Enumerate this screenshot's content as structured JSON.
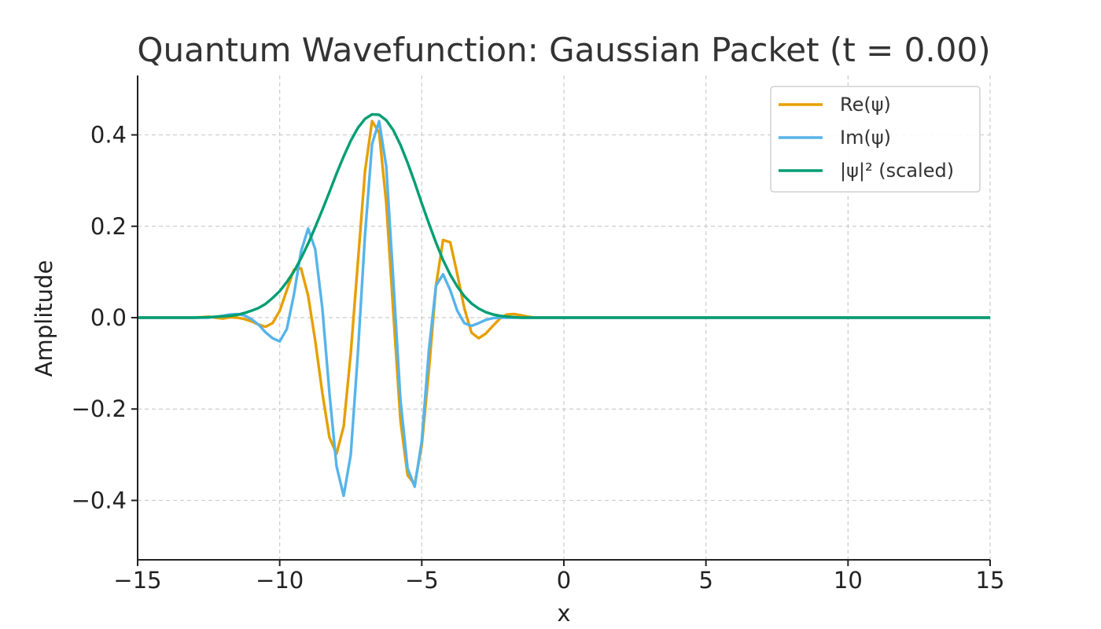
{
  "chart_data": {
    "type": "line",
    "title": "Quantum Wavefunction: Gaussian Packet (t = 0.00)",
    "xlabel": "x",
    "ylabel": "Amplitude",
    "xlim": [
      -15,
      15
    ],
    "ylim": [
      -0.53,
      0.53
    ],
    "xticks": [
      -15,
      -10,
      -5,
      0,
      5,
      10,
      15
    ],
    "xtick_labels": [
      "−15",
      "−10",
      "−5",
      "0",
      "5",
      "10",
      "15"
    ],
    "yticks": [
      -0.4,
      -0.2,
      0.0,
      0.2,
      0.4
    ],
    "ytick_labels": [
      "−0.4",
      "−0.2",
      "0.0",
      "0.2",
      "0.4"
    ],
    "grid": true,
    "legend_position": "top-right",
    "x": [
      -15,
      -14.5,
      -14,
      -13.5,
      -13,
      -12.5,
      -12,
      -11.75,
      -11.5,
      -11.25,
      -11,
      -10.75,
      -10.5,
      -10.25,
      -10,
      -9.75,
      -9.5,
      -9.25,
      -9,
      -8.75,
      -8.5,
      -8.25,
      -8,
      -7.75,
      -7.5,
      -7.25,
      -7,
      -6.75,
      -6.5,
      -6.25,
      -6,
      -5.75,
      -5.5,
      -5.25,
      -5,
      -4.75,
      -4.5,
      -4.25,
      -4,
      -3.75,
      -3.5,
      -3.25,
      -3,
      -2.75,
      -2.5,
      -2.25,
      -2,
      -1.75,
      -1.5,
      -1.25,
      -1,
      -0.75,
      -0.5,
      -0.25,
      0,
      0.5,
      1,
      1.5,
      2,
      3,
      4,
      5,
      6,
      7,
      8,
      9,
      10,
      11,
      12,
      13,
      14,
      15
    ],
    "series": [
      {
        "name": "Re(ψ)",
        "color": "#E69F00",
        "values": [
          0,
          0,
          0,
          0,
          0,
          0.002,
          -0.002,
          0.001,
          0,
          -0.003,
          -0.008,
          -0.015,
          -0.02,
          -0.012,
          0.015,
          0.06,
          0.105,
          0.108,
          0.048,
          -0.05,
          -0.165,
          -0.262,
          -0.298,
          -0.238,
          -0.078,
          0.12,
          0.32,
          0.43,
          0.405,
          0.25,
          0.01,
          -0.225,
          -0.345,
          -0.365,
          -0.28,
          -0.115,
          0.07,
          0.17,
          0.165,
          0.095,
          0.02,
          -0.033,
          -0.045,
          -0.035,
          -0.018,
          -0.002,
          0.007,
          0.008,
          0.005,
          0.002,
          0,
          0,
          0,
          0,
          0,
          0,
          0,
          0,
          0,
          0,
          0,
          0,
          0,
          0,
          0,
          0,
          0,
          0,
          0,
          0,
          0,
          0
        ]
      },
      {
        "name": "Im(ψ)",
        "color": "#56B4E9",
        "values": [
          0,
          0,
          0,
          0,
          0,
          0,
          0.004,
          0.007,
          0.008,
          0.005,
          -0.003,
          -0.015,
          -0.032,
          -0.045,
          -0.052,
          -0.025,
          0.05,
          0.145,
          0.195,
          0.15,
          0.02,
          -0.165,
          -0.325,
          -0.39,
          -0.3,
          -0.08,
          0.18,
          0.38,
          0.43,
          0.33,
          0.08,
          -0.18,
          -0.33,
          -0.37,
          -0.27,
          -0.07,
          0.07,
          0.095,
          0.06,
          0.015,
          -0.012,
          -0.018,
          -0.012,
          -0.005,
          -0.001,
          0,
          0,
          0,
          0,
          0,
          0,
          0,
          0,
          0,
          0,
          0,
          0,
          0,
          0,
          0,
          0,
          0,
          0,
          0,
          0,
          0,
          0,
          0,
          0,
          0,
          0,
          0
        ]
      },
      {
        "name": "|ψ|² (scaled)",
        "color": "#009E73",
        "values": [
          0,
          0,
          0,
          0,
          0,
          0.001,
          0.003,
          0.004,
          0.006,
          0.01,
          0.015,
          0.021,
          0.03,
          0.043,
          0.058,
          0.078,
          0.101,
          0.13,
          0.162,
          0.198,
          0.236,
          0.275,
          0.315,
          0.353,
          0.387,
          0.415,
          0.435,
          0.445,
          0.444,
          0.432,
          0.41,
          0.378,
          0.339,
          0.296,
          0.25,
          0.206,
          0.164,
          0.126,
          0.094,
          0.068,
          0.047,
          0.031,
          0.02,
          0.012,
          0.007,
          0.004,
          0.002,
          0.001,
          0,
          0,
          0,
          0,
          0,
          0,
          0,
          0,
          0,
          0,
          0,
          0,
          0,
          0,
          0,
          0,
          0,
          0,
          0,
          0,
          0,
          0,
          0,
          0
        ]
      }
    ]
  }
}
